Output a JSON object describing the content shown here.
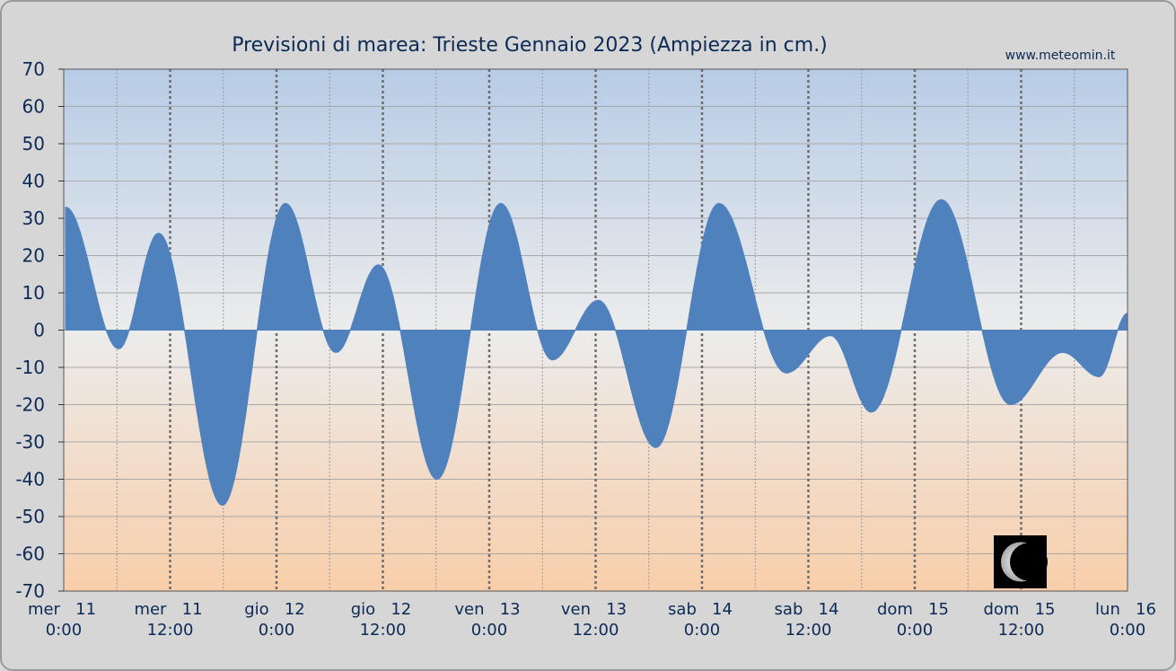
{
  "chart_data": {
    "type": "area",
    "title": "Previsioni di marea: Trieste Gennaio 2023 (Ampiezza in cm.)",
    "credit": "www.meteomin.it",
    "xlabel": "",
    "ylabel": "",
    "ylim": [
      -70,
      70
    ],
    "yticks": [
      70,
      60,
      50,
      40,
      30,
      20,
      10,
      0,
      -10,
      -20,
      -30,
      -40,
      -50,
      -60,
      -70
    ],
    "xlim_hours": [
      0,
      120
    ],
    "xticks": [
      {
        "hour": 0,
        "day": "mer",
        "num": "11",
        "time": "0:00"
      },
      {
        "hour": 12,
        "day": "mer",
        "num": "11",
        "time": "12:00"
      },
      {
        "hour": 24,
        "day": "gio",
        "num": "12",
        "time": "0:00"
      },
      {
        "hour": 36,
        "day": "gio",
        "num": "12",
        "time": "12:00"
      },
      {
        "hour": 48,
        "day": "ven",
        "num": "13",
        "time": "0:00"
      },
      {
        "hour": 60,
        "day": "ven",
        "num": "13",
        "time": "12:00"
      },
      {
        "hour": 72,
        "day": "sab",
        "num": "14",
        "time": "0:00"
      },
      {
        "hour": 84,
        "day": "sab",
        "num": "14",
        "time": "12:00"
      },
      {
        "hour": 96,
        "day": "dom",
        "num": "15",
        "time": "0:00"
      },
      {
        "hour": 108,
        "day": "dom",
        "num": "15",
        "time": "12:00"
      },
      {
        "hour": 120,
        "day": "lun",
        "num": "16",
        "time": "0:00"
      }
    ],
    "extremes": [
      {
        "hour": 0.2,
        "value": 33
      },
      {
        "hour": 6.2,
        "value": -5
      },
      {
        "hour": 10.7,
        "value": 26
      },
      {
        "hour": 17.9,
        "value": -47
      },
      {
        "hour": 25.0,
        "value": 34
      },
      {
        "hour": 30.7,
        "value": -6
      },
      {
        "hour": 35.5,
        "value": 17.5
      },
      {
        "hour": 42.1,
        "value": -40
      },
      {
        "hour": 49.3,
        "value": 34
      },
      {
        "hour": 55.1,
        "value": -8
      },
      {
        "hour": 60.3,
        "value": 8
      },
      {
        "hour": 66.8,
        "value": -31.5
      },
      {
        "hour": 73.9,
        "value": 34
      },
      {
        "hour": 81.5,
        "value": -11.5
      },
      {
        "hour": 86.5,
        "value": -1.5
      },
      {
        "hour": 91.1,
        "value": -22
      },
      {
        "hour": 99.0,
        "value": 35
      },
      {
        "hour": 106.8,
        "value": -20
      },
      {
        "hour": 112.7,
        "value": -6
      },
      {
        "hour": 116.8,
        "value": -12.5
      },
      {
        "hour": 120.0,
        "value": 4.5
      }
    ],
    "grid": true,
    "fill_color": "#4f81bd",
    "background_top": "#b7cce6",
    "background_mid": "#ececec",
    "background_bottom": "#f8ceaa",
    "moon_phase_icon": "waning-crescent-moon-icon"
  }
}
